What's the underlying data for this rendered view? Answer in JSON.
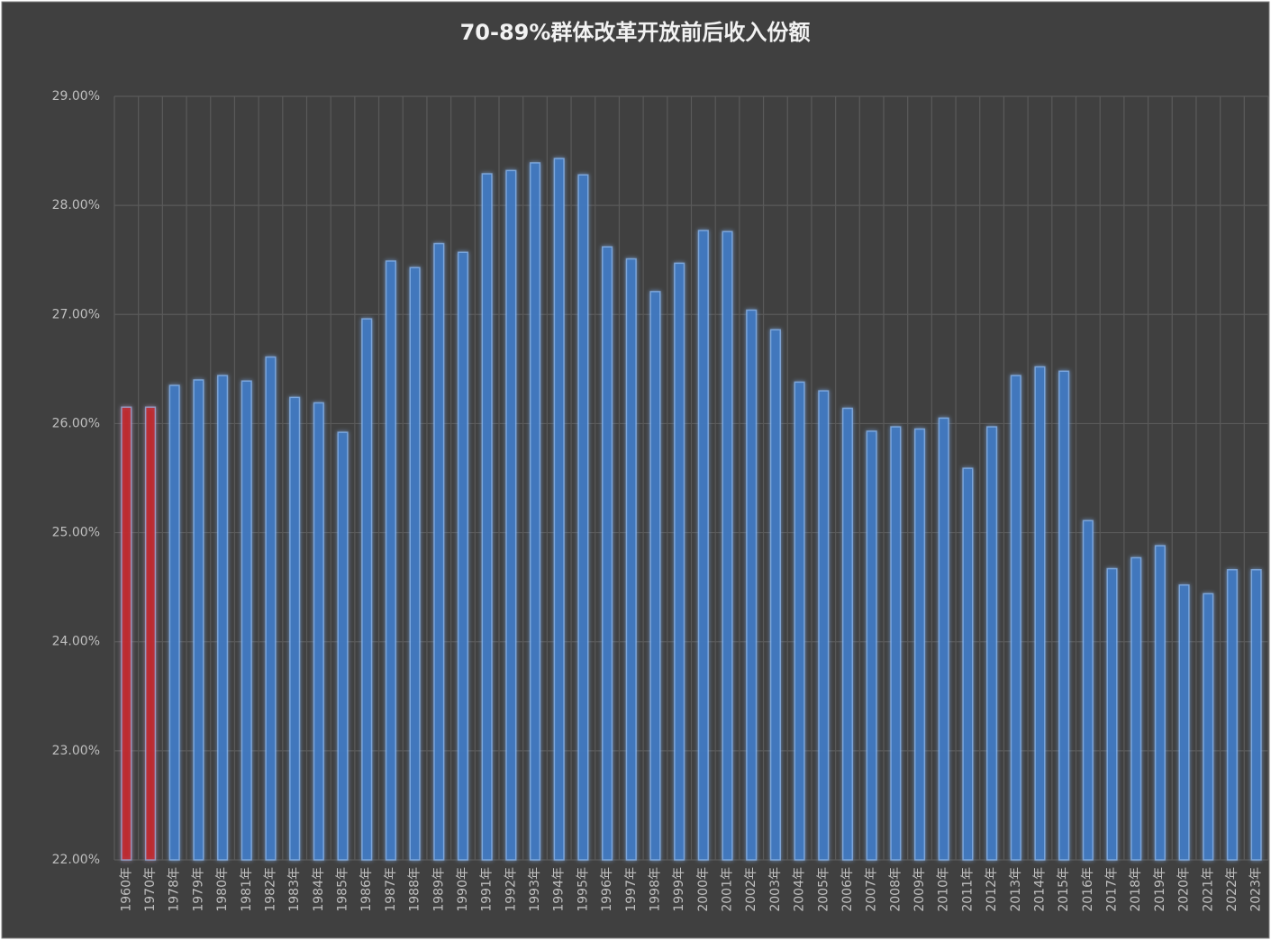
{
  "chart_data": {
    "type": "bar",
    "title": "70-89%群体改革开放前后收入份额",
    "categories": [
      "1960年",
      "1970年",
      "1978年",
      "1979年",
      "1980年",
      "1981年",
      "1982年",
      "1983年",
      "1984年",
      "1985年",
      "1986年",
      "1987年",
      "1988年",
      "1989年",
      "1990年",
      "1991年",
      "1992年",
      "1993年",
      "1994年",
      "1995年",
      "1996年",
      "1997年",
      "1998年",
      "1999年",
      "2000年",
      "2001年",
      "2002年",
      "2003年",
      "2004年",
      "2005年",
      "2006年",
      "2007年",
      "2008年",
      "2009年",
      "2010年",
      "2011年",
      "2012年",
      "2013年",
      "2014年",
      "2015年",
      "2016年",
      "2017年",
      "2018年",
      "2019年",
      "2020年",
      "2021年",
      "2022年",
      "2023年"
    ],
    "values": [
      26.15,
      26.15,
      26.35,
      26.4,
      26.44,
      26.39,
      26.61,
      26.24,
      26.19,
      25.92,
      26.96,
      27.49,
      27.43,
      27.65,
      27.57,
      28.29,
      28.32,
      28.39,
      28.43,
      28.28,
      27.62,
      27.51,
      27.21,
      27.47,
      27.77,
      27.76,
      27.04,
      26.86,
      26.38,
      26.3,
      26.14,
      25.93,
      25.97,
      25.95,
      26.05,
      25.59,
      25.97,
      26.44,
      26.52,
      26.48,
      25.11,
      24.67,
      24.77,
      24.88,
      24.52,
      24.44,
      24.66,
      24.66
    ],
    "colors": [
      "#c0282d",
      "#c0282d",
      "#3f78c0",
      "#3f78c0",
      "#3f78c0",
      "#3f78c0",
      "#3f78c0",
      "#3f78c0",
      "#3f78c0",
      "#3f78c0",
      "#3f78c0",
      "#3f78c0",
      "#3f78c0",
      "#3f78c0",
      "#3f78c0",
      "#3f78c0",
      "#3f78c0",
      "#3f78c0",
      "#3f78c0",
      "#3f78c0",
      "#3f78c0",
      "#3f78c0",
      "#3f78c0",
      "#3f78c0",
      "#3f78c0",
      "#3f78c0",
      "#3f78c0",
      "#3f78c0",
      "#3f78c0",
      "#3f78c0",
      "#3f78c0",
      "#3f78c0",
      "#3f78c0",
      "#3f78c0",
      "#3f78c0",
      "#3f78c0",
      "#3f78c0",
      "#3f78c0",
      "#3f78c0",
      "#3f78c0",
      "#3f78c0",
      "#3f78c0",
      "#3f78c0",
      "#3f78c0",
      "#3f78c0",
      "#3f78c0",
      "#3f78c0",
      "#3f78c0"
    ],
    "ylim": [
      22,
      29
    ],
    "yticks": [
      {
        "value": 22,
        "label": "22.00%"
      },
      {
        "value": 23,
        "label": "23.00%"
      },
      {
        "value": 24,
        "label": "24.00%"
      },
      {
        "value": 25,
        "label": "25.00%"
      },
      {
        "value": 26,
        "label": "26.00%"
      },
      {
        "value": 27,
        "label": "27.00%"
      },
      {
        "value": 28,
        "label": "28.00%"
      },
      {
        "value": 29,
        "label": "29.00%"
      }
    ],
    "grid": true
  }
}
